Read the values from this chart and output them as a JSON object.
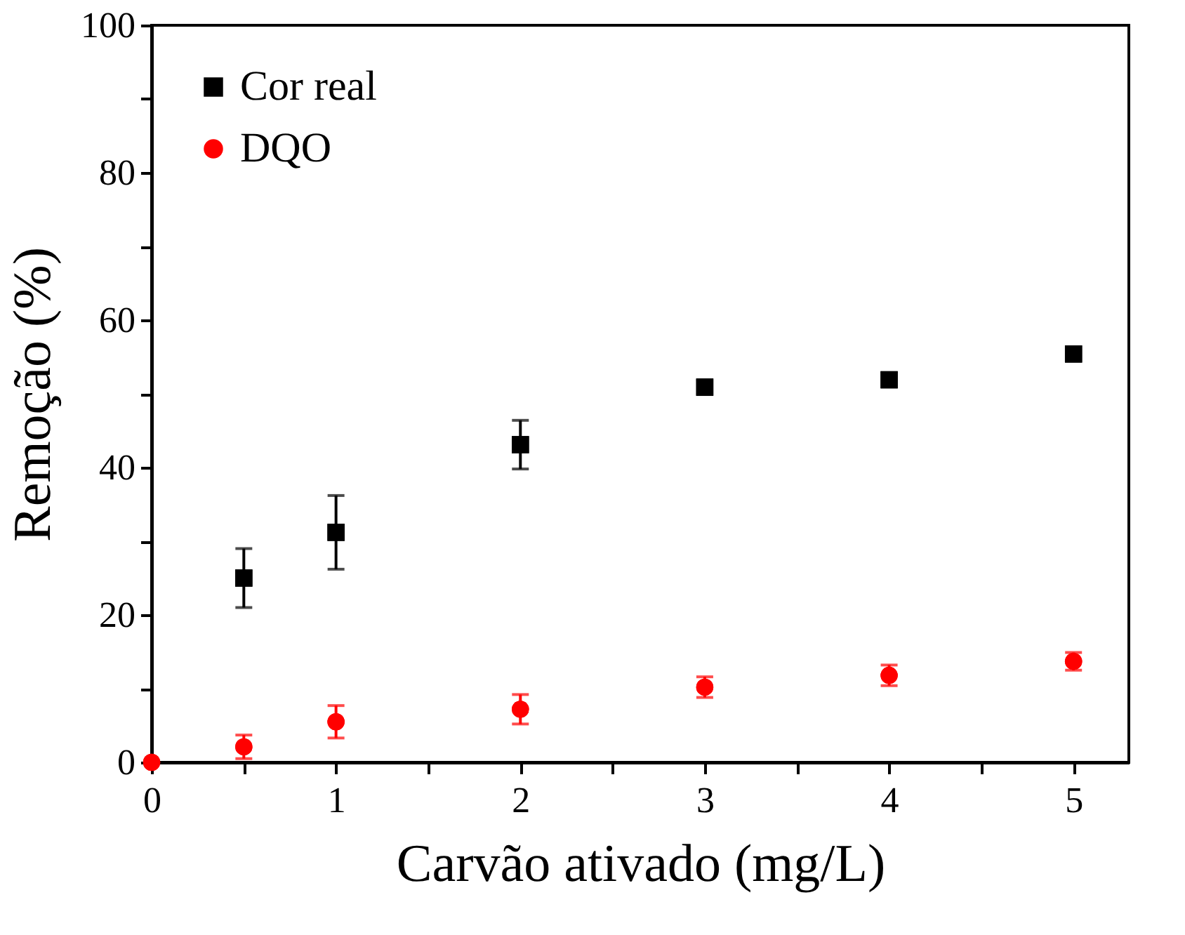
{
  "chart_data": {
    "type": "scatter",
    "xlabel": "Carvão ativado (mg/L)",
    "ylabel": "Remoção (%)",
    "x": [
      0,
      0.5,
      1,
      2,
      3,
      4,
      5
    ],
    "series": [
      {
        "name": "Cor real",
        "color": "#000000",
        "marker": "square",
        "values": [
          null,
          25,
          31.2,
          43.1,
          50.9,
          51.9,
          55.4
        ],
        "errors": [
          null,
          4,
          5,
          3.3,
          1,
          null,
          null
        ]
      },
      {
        "name": "DQO",
        "color": "#ff0000",
        "marker": "circle",
        "values": [
          0,
          2.1,
          5.5,
          7.2,
          10.2,
          11.8,
          13.7
        ],
        "errors": [
          null,
          1.6,
          2.2,
          2,
          1.4,
          1.4,
          1.2
        ]
      }
    ],
    "xlim": [
      0,
      5.3
    ],
    "ylim": [
      0,
      100
    ],
    "xticks": [
      0,
      {
        "value": 0.5,
        "label": null
      },
      1,
      {
        "value": 1.5,
        "label": null
      },
      2,
      {
        "value": 2.5,
        "label": null
      },
      3,
      {
        "value": 3.5,
        "label": null
      },
      4,
      {
        "value": 4.5,
        "label": null
      },
      5
    ],
    "yticks": [
      0,
      {
        "value": 10,
        "label": null
      },
      20,
      {
        "value": 30,
        "label": null
      },
      40,
      {
        "value": 50,
        "label": null
      },
      60,
      {
        "value": 70,
        "label": null
      },
      80,
      {
        "value": 90,
        "label": null
      },
      100
    ],
    "legend": "top left",
    "grid": false
  }
}
